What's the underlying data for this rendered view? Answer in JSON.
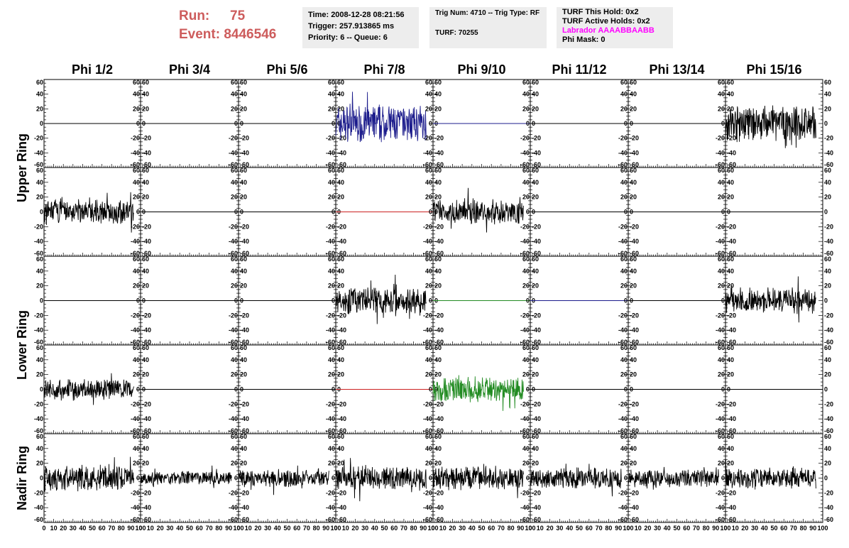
{
  "header": {
    "run_label": "Run:",
    "run_value": "75",
    "event_label": "Event:",
    "event_value": "8446546",
    "time": "Time: 2008-12-28 08:21:56",
    "trigger": "Trigger: 257.913865 ms",
    "priority": "Priority: 6 -- Queue: 6",
    "trig_num": "Trig Num: 4710 -- Trig Type: RF",
    "turf": "TURF: 70255",
    "turf_this_hold": "TURF This Hold: 0x2",
    "turf_active_holds": "TURF Active Holds: 0x2",
    "labrador": "Labrador AAAABBAABB",
    "phi_mask": "Phi Mask: 0"
  },
  "chart_data": {
    "type": "line",
    "columns": [
      "Phi 1/2",
      "Phi 3/4",
      "Phi 5/6",
      "Phi 7/8",
      "Phi 9/10",
      "Phi 11/12",
      "Phi 13/14",
      "Phi 15/16"
    ],
    "ring_labels": [
      "Upper Ring",
      "Lower Ring",
      "Nadir Ring"
    ],
    "rows_per_ring": [
      2,
      2,
      1
    ],
    "xlim": [
      0,
      100
    ],
    "ylim": [
      -60,
      60
    ],
    "x_ticks": [
      0,
      10,
      20,
      30,
      40,
      50,
      60,
      70,
      80,
      90,
      100
    ],
    "y_ticks": [
      -60,
      -40,
      -20,
      0,
      20,
      40,
      60
    ],
    "traces": [
      [
        "flat",
        "flat",
        "flat",
        "noise",
        "flat",
        "flat",
        "flat",
        "noise"
      ],
      [
        "noise",
        "flat",
        "flat",
        "flat",
        "noise",
        "flat",
        "flat",
        "flat"
      ],
      [
        "flat",
        "flat",
        "flat",
        "noise",
        "flat",
        "flat",
        "flat",
        "noise"
      ],
      [
        "noise",
        "flat",
        "flat",
        "flat",
        "noise",
        "flat",
        "flat",
        "flat"
      ],
      [
        "noise",
        "noise",
        "noise",
        "noise",
        "noise",
        "noise",
        "noise",
        "noise"
      ]
    ],
    "trace_colors": [
      [
        "#000000",
        "#000000",
        "#000000",
        "#1c1c8c",
        "#1c1c8c",
        "#000000",
        "#000000",
        "#000000"
      ],
      [
        "#000000",
        "#000000",
        "#000000",
        "#cc2222",
        "#000000",
        "#000000",
        "#000000",
        "#000000"
      ],
      [
        "#000000",
        "#000000",
        "#000000",
        "#000000",
        "#228b22",
        "#1c1c8c",
        "#000000",
        "#000000"
      ],
      [
        "#000000",
        "#000000",
        "#000000",
        "#cc2222",
        "#228b22",
        "#000000",
        "#000000",
        "#000000"
      ],
      [
        "#000000",
        "#000000",
        "#000000",
        "#000000",
        "#000000",
        "#000000",
        "#000000",
        "#000000"
      ]
    ],
    "trace_amplitude": [
      [
        0,
        0,
        0,
        22,
        0,
        0,
        0,
        20
      ],
      [
        14,
        0,
        0,
        0,
        14,
        0,
        0,
        0
      ],
      [
        0,
        0,
        0,
        16,
        0,
        0,
        0,
        14
      ],
      [
        12,
        0,
        0,
        0,
        15,
        0,
        0,
        0
      ],
      [
        15,
        8,
        10,
        13,
        13,
        12,
        10,
        12
      ]
    ]
  }
}
